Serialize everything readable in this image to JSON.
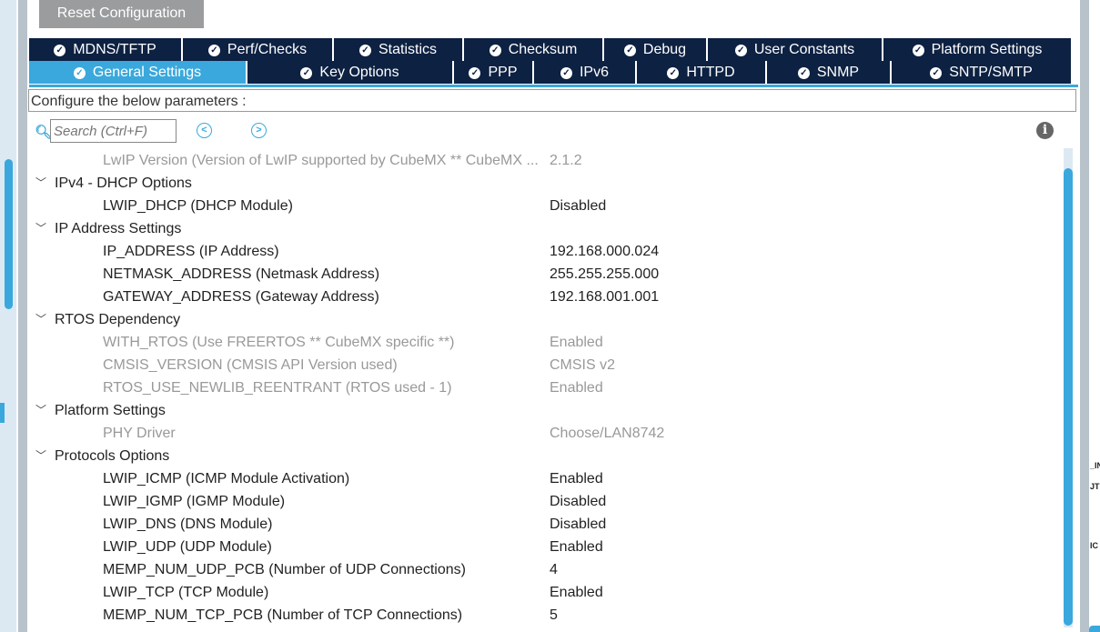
{
  "reset_label": "Reset Configuration",
  "tabs_row1": [
    "MDNS/TFTP",
    "Perf/Checks",
    "Statistics",
    "Checksum",
    "Debug",
    "User Constants",
    "Platform Settings"
  ],
  "tabs_row2": [
    "General Settings",
    "Key Options",
    "PPP",
    "IPv6",
    "HTTPD",
    "SNMP",
    "SNTP/SMTP"
  ],
  "active_tab": "General Settings",
  "configure_label": "Configure the below parameters :",
  "search_placeholder": "Search (Ctrl+F)",
  "rows": [
    {
      "type": "item",
      "label": "LwIP Version (Version of LwIP supported by CubeMX ** CubeMX ...",
      "value": "2.1.2",
      "disabled": true
    },
    {
      "type": "group",
      "label": "IPv4 - DHCP Options"
    },
    {
      "type": "item",
      "label": "LWIP_DHCP (DHCP Module)",
      "value": "Disabled"
    },
    {
      "type": "group",
      "label": "IP Address Settings"
    },
    {
      "type": "item",
      "label": "IP_ADDRESS (IP Address)",
      "value": "192.168.000.024"
    },
    {
      "type": "item",
      "label": "NETMASK_ADDRESS (Netmask Address)",
      "value": "255.255.255.000"
    },
    {
      "type": "item",
      "label": "GATEWAY_ADDRESS (Gateway Address)",
      "value": "192.168.001.001"
    },
    {
      "type": "group",
      "label": "RTOS Dependency"
    },
    {
      "type": "item",
      "label": "WITH_RTOS (Use FREERTOS ** CubeMX specific **)",
      "value": "Enabled",
      "disabled": true
    },
    {
      "type": "item",
      "label": "CMSIS_VERSION (CMSIS API Version used)",
      "value": "CMSIS v2",
      "disabled": true
    },
    {
      "type": "item",
      "label": "RTOS_USE_NEWLIB_REENTRANT (RTOS used - 1)",
      "value": "Enabled",
      "disabled": true
    },
    {
      "type": "group",
      "label": "Platform Settings"
    },
    {
      "type": "item",
      "label": "PHY Driver",
      "value": "Choose/LAN8742",
      "disabled": true
    },
    {
      "type": "group",
      "label": "Protocols Options"
    },
    {
      "type": "item",
      "label": "LWIP_ICMP (ICMP Module Activation)",
      "value": "Enabled"
    },
    {
      "type": "item",
      "label": "LWIP_IGMP (IGMP Module)",
      "value": "Disabled"
    },
    {
      "type": "item",
      "label": "LWIP_DNS (DNS Module)",
      "value": "Disabled"
    },
    {
      "type": "item",
      "label": "LWIP_UDP (UDP Module)",
      "value": "Enabled"
    },
    {
      "type": "item",
      "label": "MEMP_NUM_UDP_PCB (Number of UDP Connections)",
      "value": "4"
    },
    {
      "type": "item",
      "label": "LWIP_TCP (TCP Module)",
      "value": "Enabled"
    },
    {
      "type": "item",
      "label": "MEMP_NUM_TCP_PCB (Number of TCP Connections)",
      "value": "5"
    }
  ],
  "right_fragments": [
    "_IN",
    "JT",
    "IC"
  ],
  "colors": {
    "tab_bg": "#0d2142",
    "accent": "#3aa8dc"
  },
  "icons": {
    "tab": "check-circle-icon",
    "search": "search-icon",
    "prev": "chevron-left-circle-icon",
    "next": "chevron-right-circle-icon",
    "info": "info-icon",
    "group": "chevron-down-icon"
  }
}
